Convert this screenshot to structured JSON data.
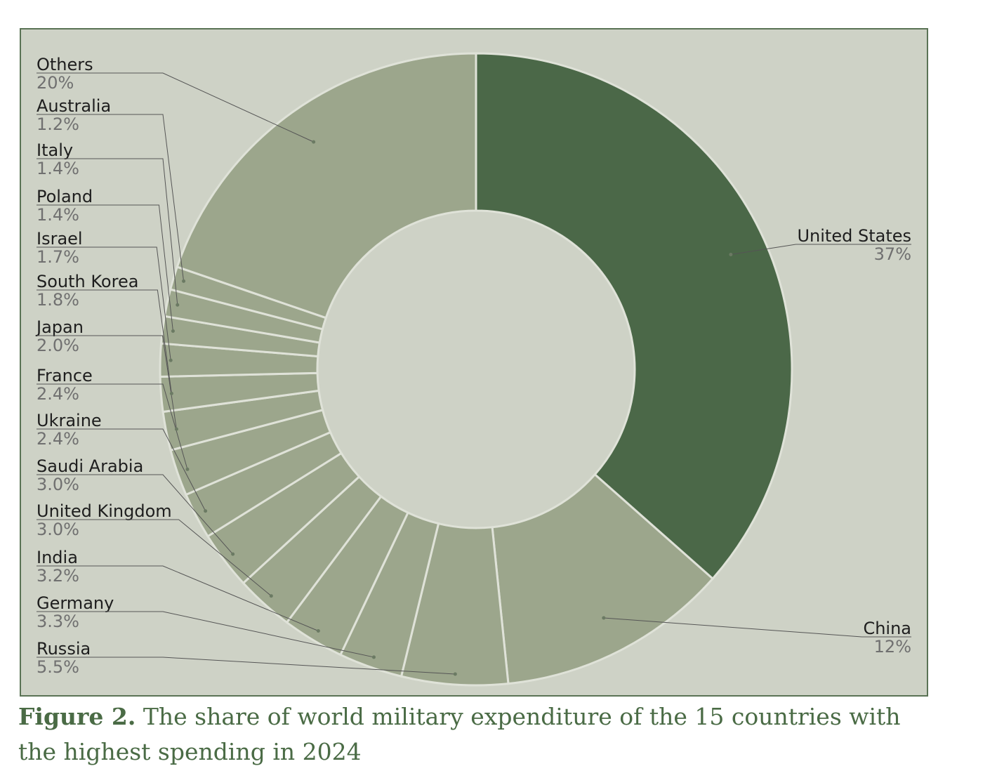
{
  "chart_data": {
    "type": "pie",
    "variant": "donut",
    "title": "",
    "unit": "%",
    "slices": [
      {
        "label": "United States",
        "value": 37,
        "value_label": "37%",
        "highlight": true
      },
      {
        "label": "China",
        "value": 12,
        "value_label": "12%"
      },
      {
        "label": "Russia",
        "value": 5.5,
        "value_label": "5.5%"
      },
      {
        "label": "Germany",
        "value": 3.3,
        "value_label": "3.3%"
      },
      {
        "label": "India",
        "value": 3.2,
        "value_label": "3.2%"
      },
      {
        "label": "United Kingdom",
        "value": 3.0,
        "value_label": "3.0%"
      },
      {
        "label": "Saudi Arabia",
        "value": 3.0,
        "value_label": "3.0%"
      },
      {
        "label": "Ukraine",
        "value": 2.4,
        "value_label": "2.4%"
      },
      {
        "label": "France",
        "value": 2.4,
        "value_label": "2.4%"
      },
      {
        "label": "Japan",
        "value": 2.0,
        "value_label": "2.0%"
      },
      {
        "label": "South Korea",
        "value": 1.8,
        "value_label": "1.8%"
      },
      {
        "label": "Israel",
        "value": 1.7,
        "value_label": "1.7%"
      },
      {
        "label": "Poland",
        "value": 1.4,
        "value_label": "1.4%"
      },
      {
        "label": "Italy",
        "value": 1.4,
        "value_label": "1.4%"
      },
      {
        "label": "Australia",
        "value": 1.2,
        "value_label": "1.2%"
      },
      {
        "label": "Others",
        "value": 20,
        "value_label": "20%"
      }
    ],
    "colors": {
      "highlight": "#4b6848",
      "slice": "#9ca68c",
      "separator": "#dfe2d8",
      "hole": "#ced2c6",
      "leader": "#555555"
    }
  },
  "caption": {
    "label": "Figure 2.",
    "text": " The share of world military expenditure of the 15 countries with the highest spending in 2024"
  }
}
